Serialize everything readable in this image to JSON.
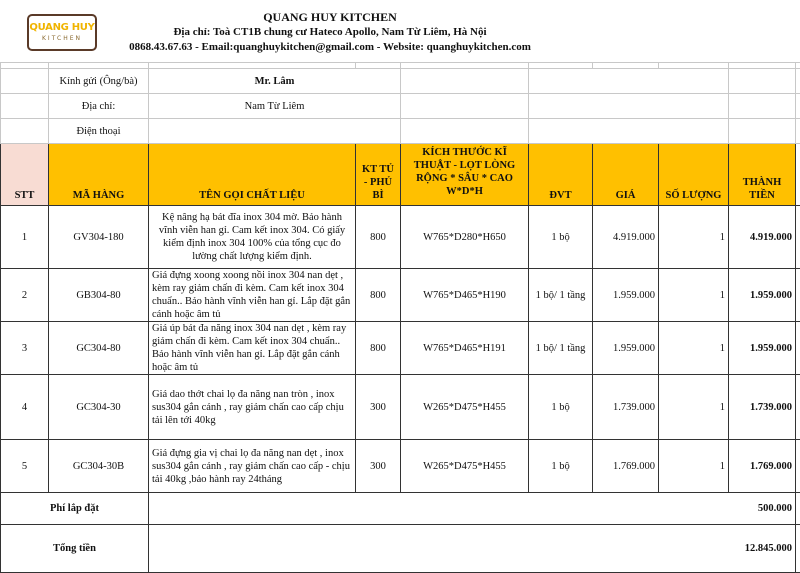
{
  "company": {
    "logo_text": "QUANG HUY",
    "logo_sub": "KITCHEN",
    "name": "QUANG HUY KITCHEN",
    "address": "Địa chỉ: Toà CT1B chung cư Hateco Apollo, Nam Từ Liêm, Hà Nội",
    "contact": "0868.43.67.63 - Email:quanghuykitchen@gmail.com - Website: quanghuykitchen.com"
  },
  "customer": {
    "to_label": "Kính gửi (Ông/bà)",
    "to_value": "Mr. Lâm",
    "addr_label": "Địa chỉ:",
    "addr_value": "Nam Từ Liêm",
    "phone_label": "Điện thoại"
  },
  "columns": [
    "STT",
    "MÃ HÀNG",
    "TÊN GỌI CHẤT LIỆU",
    "KT TỦ - PHỦ BÌ",
    "KÍCH THƯỚC KĨ THUẬT - LỌT LÒNG RỘNG * SÂU * CAO W*D*H",
    "ĐVT",
    "GIÁ",
    "SỐ LƯỢNG",
    "THÀNH TIỀN"
  ],
  "rows": [
    {
      "stt": "1",
      "code": "GV304-180",
      "desc": "Kệ nâng hạ bát đĩa inox 304 mờ. Bảo hành vĩnh viễn han gỉ. Cam kết inox 304. Có giấy kiểm định inox 304 100% của tổng cục đo lường chất lượng kiểm định.",
      "kt": "800",
      "size": "W765*D280*H650",
      "unit": "1 bộ",
      "price": "4.919.000",
      "qty": "1",
      "total": "4.919.000"
    },
    {
      "stt": "2",
      "code": "GB304-80",
      "desc": "Giá đựng xoong xoong nồi inox 304 nan dẹt , kèm ray giảm chấn đi kèm. Cam kết inox 304 chuẩn.. Bảo hành vĩnh viễn han gỉ. Lắp đặt gắn cánh hoặc âm tủ",
      "kt": "800",
      "size": "W765*D465*H190",
      "unit": "1 bộ/ 1 tầng",
      "price": "1.959.000",
      "qty": "1",
      "total": "1.959.000"
    },
    {
      "stt": "3",
      "code": "GC304-80",
      "desc": "Giá úp bát đa năng inox 304 nan dẹt , kèm ray giảm chấn đi kèm. Cam kết inox 304 chuẩn.. Bảo hành vĩnh viễn han gỉ. Lắp đặt gắn cánh hoặc âm tủ",
      "kt": "800",
      "size": "W765*D465*H191",
      "unit": "1 bộ/ 1 tầng",
      "price": "1.959.000",
      "qty": "1",
      "total": "1.959.000"
    },
    {
      "stt": "4",
      "code": "GC304-30",
      "desc": "Giá dao thớt chai lọ đa năng nan tròn , inox sus304  gắn cánh , ray giảm chấn cao cấp chịu tải lên tới 40kg",
      "kt": "300",
      "size": "W265*D475*H455",
      "unit": "1 bộ",
      "price": "1.739.000",
      "qty": "1",
      "total": "1.739.000"
    },
    {
      "stt": "5",
      "code": "GC304-30B",
      "desc": "Giá đựng gia vị chai lọ đa năng nan dẹt , inox sus304  gắn cánh , ray giảm chấn cao cấp  - chịu tải 40kg ,bảo hành ray 24tháng",
      "kt": "300",
      "size": "W265*D475*H455",
      "unit": "1 bộ",
      "price": "1.769.000",
      "qty": "1",
      "total": "1.769.000"
    }
  ],
  "install": {
    "label": "Phí lắp đặt",
    "value": "500.000"
  },
  "grand": {
    "label": "Tổng tiền",
    "value": "12.845.000"
  },
  "colors": {
    "header": "#ffc000",
    "stt_header": "#f8dcd3"
  }
}
